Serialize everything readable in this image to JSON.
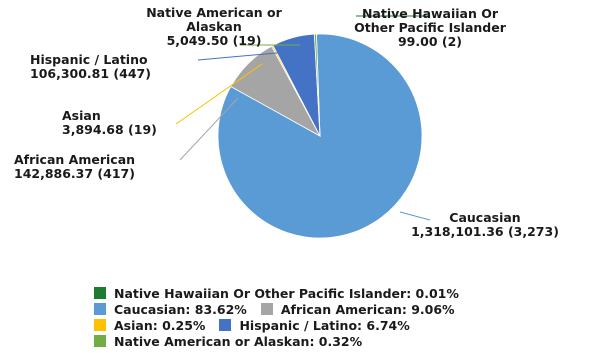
{
  "chart_data": {
    "type": "pie",
    "title": "",
    "series": [
      {
        "name": "",
        "slices": [
          {
            "label": "Caucasian",
            "value": 1318101.36,
            "count": 3273,
            "percent": 83.62,
            "color": "#5b9bd5",
            "annotation": "Caucasian",
            "annotation_value": "1,318,101.36 (3,273)",
            "legend_text": "Caucasian: 83.62%"
          },
          {
            "label": "African American",
            "value": 142886.37,
            "count": 417,
            "percent": 9.06,
            "color": "#a5a5a5",
            "annotation": "African American",
            "annotation_value": "142,886.37 (417)",
            "legend_text": "African American: 9.06%"
          },
          {
            "label": "Asian",
            "value": 3894.68,
            "count": 19,
            "percent": 0.25,
            "color": "#ffc000",
            "annotation": "Asian",
            "annotation_value": "3,894.68 (19)",
            "legend_text": "Asian: 0.25%"
          },
          {
            "label": "Hispanic / Latino",
            "value": 106300.81,
            "count": 447,
            "percent": 6.74,
            "color": "#4472c4",
            "annotation": "Hispanic / Latino",
            "annotation_value": "106,300.81 (447)",
            "legend_text": "Hispanic / Latino: 6.74%"
          },
          {
            "label": "Native American or Alaskan",
            "value": 5049.5,
            "count": 19,
            "percent": 0.32,
            "color": "#70ad47",
            "annotation": "Native American or\nAlaskan",
            "annotation_value": "5,049.50 (19)",
            "legend_text": "Native American or Alaskan: 0.32%"
          },
          {
            "label": "Native Hawaiian Or Other Pacific Islander",
            "value": 99.0,
            "count": 2,
            "percent": 0.01,
            "color": "#1e7b30",
            "annotation": "Native Hawaiian Or\nOther Pacific Islander",
            "annotation_value": "99.00 (2)",
            "legend_text": "Native Hawaiian Or Other Pacific Islander: 0.01%"
          }
        ]
      }
    ],
    "legend_position": "bottom",
    "legend_rows": [
      [
        "Native Hawaiian Or Other Pacific Islander"
      ],
      [
        "Caucasian",
        "African American"
      ],
      [
        "Asian",
        "Hispanic / Latino"
      ],
      [
        "Native American or Alaskan"
      ]
    ]
  }
}
